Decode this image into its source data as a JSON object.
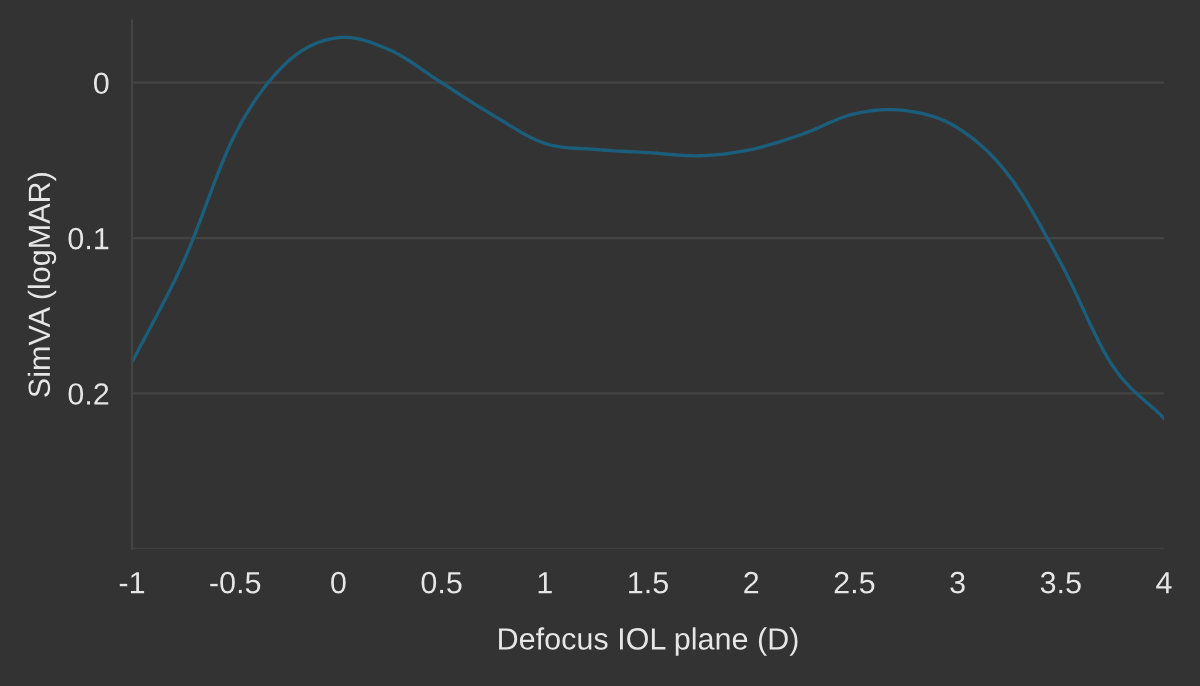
{
  "chart_data": {
    "type": "line",
    "xlabel": "Defocus IOL plane (D)",
    "ylabel": "SimVA (logMAR)",
    "x": [
      -1,
      -0.75,
      -0.5,
      -0.25,
      0,
      0.25,
      0.5,
      0.75,
      1,
      1.25,
      1.5,
      1.75,
      2,
      2.25,
      2.5,
      2.75,
      3,
      3.25,
      3.5,
      3.75,
      4
    ],
    "series": [
      {
        "color": "#1b5e7b",
        "values": [
          0.18,
          0.115,
          0.033,
          -0.013,
          -0.029,
          -0.021,
          0.0,
          0.021,
          0.039,
          0.043,
          0.045,
          0.047,
          0.043,
          0.033,
          0.02,
          0.018,
          0.029,
          0.06,
          0.116,
          0.182,
          0.216
        ]
      }
    ],
    "xlim": [
      -1,
      4
    ],
    "xticks": [
      -1,
      -0.5,
      0,
      0.5,
      1,
      1.5,
      2,
      2.5,
      3,
      3.5,
      4
    ],
    "ylim": [
      0.3,
      -0.04
    ],
    "yticks": [
      0,
      0.1,
      0.2,
      {
        "value": 0.3,
        "label": null
      }
    ],
    "grid": "y",
    "legend": false,
    "marker": "none",
    "line_style": "solid"
  }
}
